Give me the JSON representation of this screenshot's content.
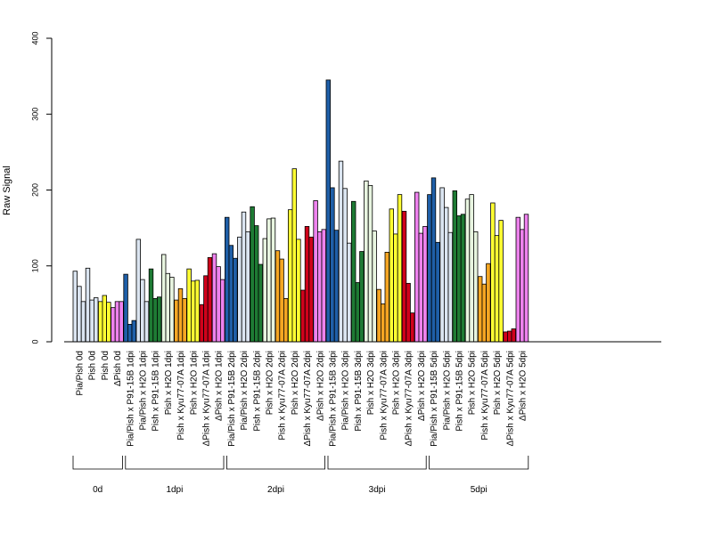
{
  "chart_data": {
    "type": "bar",
    "ylabel": "Raw Signal",
    "ylim": [
      0,
      400
    ],
    "yticks": [
      0,
      100,
      200,
      300,
      400
    ],
    "grid": false,
    "legend": "none",
    "categories": [
      "Pia/Pish 0d",
      "Pish 0d",
      "Pish 0d",
      "ΔPish 0d",
      "Pia/Pish x P91-15B 1dpi",
      "Pia/Pish x H2O 1dpi",
      "Pish x P91-15B 1dpi",
      "Pish x H2O 1dpi",
      "Pish x Kyu77-07A 1dpi",
      "Pish x H2O 1dpi",
      "ΔPish x Kyu77-07A 1dpi",
      "ΔPish x H2O 1dpi",
      "Pia/Pish x P91-15B 2dpi",
      "Pia/Pish x H2O 2dpi",
      "Pish x P91-15B 2dpi",
      "Pish x H2O 2dpi",
      "Pish x Kyu77-07A 2dpi",
      "Pish x H2O 2dpi",
      "ΔPish x Kyu77-07A 2dpi",
      "ΔPish x H2O 2dpi",
      "Pia/Pish x P91-15B 3dpi",
      "Pia/Pish x H2O 3dpi",
      "Pish x P91-15B 3dpi",
      "Pish x H2O 3dpi",
      "Pish x Kyu77-07A 3dpi",
      "Pish x H2O 3dpi",
      "ΔPish x Kyu77-07A 3dpi",
      "ΔPish x H2O 3dpi",
      "Pia/Pish x P91-15B 5dpi",
      "Pia/Pish x H2O 5dpi",
      "Pish x P91-15B 5dpi",
      "Pish x H2O 5dpi",
      "Pish x Kyu77-07A 5dpi",
      "Pish x H2O 5dpi",
      "ΔPish x Kyu77-07A 5dpi",
      "ΔPish x H2O 5dpi"
    ],
    "colors": [
      "#dbe5f1",
      "#dbe5f1",
      "#ffff33",
      "#ee82ee",
      "#1f5fa8",
      "#dbe5f1",
      "#1e7b34",
      "#e8f5e0",
      "#f5a623",
      "#ffff33",
      "#d0021b",
      "#ee82ee",
      "#1f5fa8",
      "#dbe5f1",
      "#1e7b34",
      "#e8f5e0",
      "#f5a623",
      "#ffff33",
      "#d0021b",
      "#ee82ee",
      "#1f5fa8",
      "#dbe5f1",
      "#1e7b34",
      "#e8f5e0",
      "#f5a623",
      "#ffff33",
      "#d0021b",
      "#ee82ee",
      "#1f5fa8",
      "#dbe5f1",
      "#1e7b34",
      "#e8f5e0",
      "#f5a623",
      "#ffff33",
      "#d0021b",
      "#ee82ee"
    ],
    "values": [
      [
        93,
        73,
        53
      ],
      [
        97,
        55,
        58
      ],
      [
        53,
        61,
        52
      ],
      [
        45,
        53,
        53
      ],
      [
        89,
        23,
        28
      ],
      [
        135,
        82,
        53
      ],
      [
        96,
        57,
        59
      ],
      [
        115,
        90,
        85
      ],
      [
        55,
        70,
        57
      ],
      [
        96,
        80,
        81
      ],
      [
        49,
        87,
        111
      ],
      [
        116,
        99,
        82
      ],
      [
        164,
        127,
        110
      ],
      [
        138,
        171,
        145
      ],
      [
        178,
        153,
        102
      ],
      [
        136,
        162,
        163
      ],
      [
        120,
        109,
        57
      ],
      [
        174,
        228,
        135
      ],
      [
        68,
        152,
        138
      ],
      [
        186,
        145,
        148
      ],
      [
        345,
        203,
        147
      ],
      [
        238,
        202,
        130
      ],
      [
        185,
        78,
        119
      ],
      [
        212,
        206,
        146
      ],
      [
        69,
        50,
        118
      ],
      [
        175,
        142,
        194
      ],
      [
        172,
        77,
        38
      ],
      [
        197,
        143,
        152
      ],
      [
        194,
        216,
        131
      ],
      [
        203,
        177,
        144
      ],
      [
        199,
        166,
        168
      ],
      [
        188,
        194,
        145
      ],
      [
        86,
        76,
        103
      ],
      [
        183,
        140,
        160
      ],
      [
        13,
        14,
        17
      ],
      [
        164,
        148,
        168
      ]
    ],
    "groups": [
      {
        "label": "0d",
        "count": 4
      },
      {
        "label": "1dpi",
        "count": 8
      },
      {
        "label": "2dpi",
        "count": 8
      },
      {
        "label": "3dpi",
        "count": 8
      },
      {
        "label": "5dpi",
        "count": 8
      }
    ]
  }
}
